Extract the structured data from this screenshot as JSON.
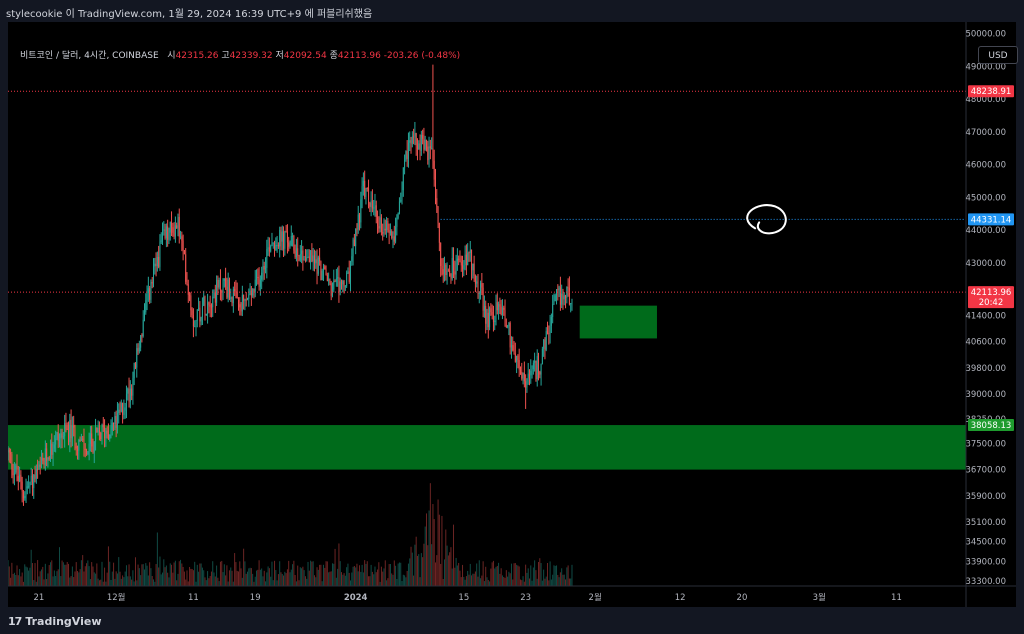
{
  "header": {
    "caption": "stylecookie 이 TradingView.com, 1월 29, 2024 16:39 UTC+9 에 퍼블리쉬했음"
  },
  "legend": {
    "symbol": "비트코인 / 달러, 4시간, COINBASE",
    "open_label": "시",
    "open": "42315.26",
    "high_label": "고",
    "high": "42339.32",
    "low_label": "저",
    "low": "42092.54",
    "close_label": "종",
    "close": "42113.96",
    "change": "-203.26 (-0.48%)"
  },
  "toolbar": {
    "currency": "USD"
  },
  "footer": {
    "brand": "TradingView",
    "logo_icon": "tradingview-logo-icon"
  },
  "colors": {
    "up": "#26a69a",
    "down": "#ef5350",
    "zone": "#006b1b",
    "marker_red": "#f23645",
    "marker_blue": "#2196f3"
  },
  "chart_data": {
    "type": "candlestick",
    "symbol": "BTCUSD",
    "interval": "4h",
    "ylim": [
      33150,
      50350
    ],
    "y_ticks": [
      33300,
      33900,
      34500,
      35100,
      35900,
      36700,
      37500,
      38250,
      39000,
      39800,
      40600,
      41400,
      43000,
      44000,
      45000,
      46000,
      47000,
      48000,
      49000,
      50000
    ],
    "y_tick_labels": [
      "33300.00",
      "33900.00",
      "34500.00",
      "35100.00",
      "35900.00",
      "36700.00",
      "37500.00",
      "38250.00",
      "39000.00",
      "39800.00",
      "40600.00",
      "41400.00",
      "43000.00",
      "44000.00",
      "45000.00",
      "46000.00",
      "47000.00",
      "48000.00",
      "49000.00",
      "50000.00"
    ],
    "x_ticks": [
      {
        "label": "21",
        "date": "2023-11-21"
      },
      {
        "label": "12월",
        "date": "2023-12-01"
      },
      {
        "label": "11",
        "date": "2023-12-11"
      },
      {
        "label": "19",
        "date": "2023-12-19"
      },
      {
        "label": "2024",
        "date": "2024-01-01"
      },
      {
        "label": "15",
        "date": "2024-01-15"
      },
      {
        "label": "23",
        "date": "2024-01-23"
      },
      {
        "label": "2월",
        "date": "2024-02-01"
      },
      {
        "label": "12",
        "date": "2024-02-12"
      },
      {
        "label": "20",
        "date": "2024-02-20"
      },
      {
        "label": "3월",
        "date": "2024-03-01"
      },
      {
        "label": "11",
        "date": "2024-03-11"
      }
    ],
    "path": [
      {
        "date": "2023-11-17",
        "close": 37200
      },
      {
        "date": "2023-11-19",
        "close": 36000
      },
      {
        "date": "2023-11-21",
        "close": 36600
      },
      {
        "date": "2023-11-23",
        "close": 37600
      },
      {
        "date": "2023-11-25",
        "close": 37900
      },
      {
        "date": "2023-11-27",
        "close": 37300
      },
      {
        "date": "2023-11-29",
        "close": 37800
      },
      {
        "date": "2023-12-01",
        "close": 38100
      },
      {
        "date": "2023-12-03",
        "close": 39300
      },
      {
        "date": "2023-12-05",
        "close": 41800
      },
      {
        "date": "2023-12-07",
        "close": 43700
      },
      {
        "date": "2023-12-09",
        "close": 44200
      },
      {
        "date": "2023-12-11",
        "close": 41300
      },
      {
        "date": "2023-12-13",
        "close": 41900
      },
      {
        "date": "2023-12-15",
        "close": 42400
      },
      {
        "date": "2023-12-17",
        "close": 41600
      },
      {
        "date": "2023-12-19",
        "close": 42200
      },
      {
        "date": "2023-12-21",
        "close": 43700
      },
      {
        "date": "2023-12-23",
        "close": 43700
      },
      {
        "date": "2023-12-25",
        "close": 43300
      },
      {
        "date": "2023-12-27",
        "close": 43000
      },
      {
        "date": "2023-12-29",
        "close": 42200
      },
      {
        "date": "2023-12-31",
        "close": 42400
      },
      {
        "date": "2024-01-02",
        "close": 45300
      },
      {
        "date": "2024-01-04",
        "close": 44200
      },
      {
        "date": "2024-01-06",
        "close": 44000
      },
      {
        "date": "2024-01-08",
        "close": 46800
      },
      {
        "date": "2024-01-10",
        "close": 46600
      },
      {
        "date": "2024-01-11",
        "close": 46200
      },
      {
        "date": "2024-01-12",
        "close": 43000
      },
      {
        "date": "2024-01-14",
        "close": 42800
      },
      {
        "date": "2024-01-16",
        "close": 43100
      },
      {
        "date": "2024-01-18",
        "close": 41300
      },
      {
        "date": "2024-01-20",
        "close": 41700
      },
      {
        "date": "2024-01-22",
        "close": 39800
      },
      {
        "date": "2024-01-23",
        "close": 39300
      },
      {
        "date": "2024-01-25",
        "close": 40000
      },
      {
        "date": "2024-01-27",
        "close": 41900
      },
      {
        "date": "2024-01-29",
        "close": 42100
      }
    ],
    "price_markers": [
      {
        "price": 48238.91,
        "label": "48238.91",
        "color": "#f23645",
        "line_style": "dotted"
      },
      {
        "price": 44331.14,
        "label": "44331.14",
        "color": "#2196f3",
        "line_style": "dotted",
        "from_date": "2024-01-12"
      },
      {
        "price": 42113.96,
        "label": "42113.96",
        "sublabel": "20:42",
        "color": "#f23645",
        "line_style": "dotted"
      },
      {
        "price": 38058.13,
        "label": "38058.13",
        "color": "#1e9b2e",
        "line_style": "none"
      }
    ],
    "zones": [
      {
        "from_date": "2023-11-17",
        "to_date": "2024-03-20",
        "price_low": 36700,
        "price_high": 38058.13,
        "color": "#006b1b"
      },
      {
        "from_date": "2024-01-30",
        "to_date": "2024-02-09",
        "price_low": 40700,
        "price_high": 41700,
        "color": "#006b1b"
      }
    ],
    "annotations": [
      {
        "type": "circle-sketch",
        "date": "2024-02-23",
        "price": 44300,
        "color": "#ffffff"
      }
    ],
    "volume": {
      "shown": true,
      "peak_date": "2024-01-11"
    },
    "grid": false,
    "legend": "top-left"
  }
}
